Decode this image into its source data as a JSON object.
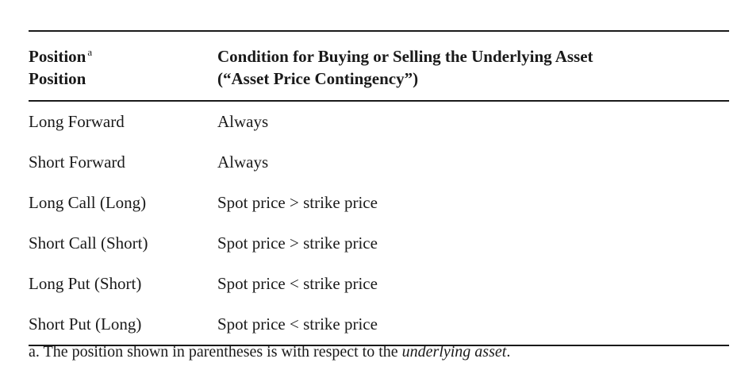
{
  "table": {
    "header": {
      "col1_line1": "Position",
      "col1_marker": "a",
      "col1_line2": "Position",
      "col2_line1": "Condition for Buying or Selling the Underlying Asset",
      "col2_line2": "(“Asset Price Contingency”)"
    },
    "rows": [
      {
        "position": "Long Forward",
        "condition": "Always"
      },
      {
        "position": "Short Forward",
        "condition": "Always"
      },
      {
        "position": "Long Call (Long)",
        "condition": "Spot price > strike price"
      },
      {
        "position": "Short Call (Short)",
        "condition": "Spot price > strike price"
      },
      {
        "position": "Long Put (Short)",
        "condition": "Spot price < strike price"
      },
      {
        "position": "Short Put (Long)",
        "condition": "Spot price < strike price"
      }
    ]
  },
  "footnote": {
    "prefix": "a. The position shown in parentheses is with respect to the ",
    "emphasis": "underlying asset",
    "suffix": "."
  }
}
